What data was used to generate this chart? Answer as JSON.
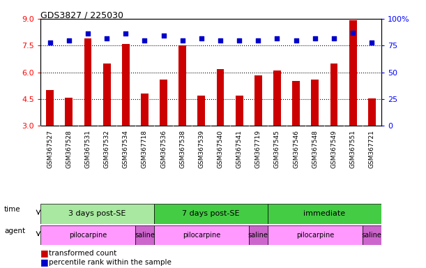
{
  "title": "GDS3827 / 225030",
  "samples": [
    "GSM367527",
    "GSM367528",
    "GSM367531",
    "GSM367532",
    "GSM367534",
    "GSM367718",
    "GSM367536",
    "GSM367538",
    "GSM367539",
    "GSM367540",
    "GSM367541",
    "GSM367719",
    "GSM367545",
    "GSM367546",
    "GSM367548",
    "GSM367549",
    "GSM367551",
    "GSM367721"
  ],
  "transformed_count": [
    5.0,
    4.6,
    7.9,
    6.5,
    7.6,
    4.8,
    5.6,
    7.5,
    4.7,
    6.2,
    4.7,
    5.85,
    6.1,
    5.5,
    5.6,
    6.5,
    8.9,
    4.55
  ],
  "percentile_rank": [
    78,
    80,
    86,
    82,
    86,
    80,
    84,
    80,
    82,
    80,
    80,
    80,
    82,
    80,
    82,
    82,
    87,
    78
  ],
  "bar_color": "#cc0000",
  "dot_color": "#0000cc",
  "ylim_left": [
    3,
    9
  ],
  "ylim_right": [
    0,
    100
  ],
  "yticks_left": [
    3,
    4.5,
    6,
    7.5,
    9
  ],
  "yticks_right": [
    0,
    25,
    50,
    75,
    100
  ],
  "dotted_lines": [
    4.5,
    6.0,
    7.5
  ],
  "time_groups": [
    {
      "label": "3 days post-SE",
      "start": 0,
      "end": 6,
      "color": "#a8e8a0"
    },
    {
      "label": "7 days post-SE",
      "start": 6,
      "end": 12,
      "color": "#44cc44"
    },
    {
      "label": "immediate",
      "start": 12,
      "end": 18,
      "color": "#44cc44"
    }
  ],
  "agent_groups": [
    {
      "label": "pilocarpine",
      "start": 0,
      "end": 5,
      "color": "#ff99ff"
    },
    {
      "label": "saline",
      "start": 5,
      "end": 6,
      "color": "#cc66cc"
    },
    {
      "label": "pilocarpine",
      "start": 6,
      "end": 11,
      "color": "#ff99ff"
    },
    {
      "label": "saline",
      "start": 11,
      "end": 12,
      "color": "#cc66cc"
    },
    {
      "label": "pilocarpine",
      "start": 12,
      "end": 17,
      "color": "#ff99ff"
    },
    {
      "label": "saline",
      "start": 17,
      "end": 18,
      "color": "#cc66cc"
    }
  ],
  "legend_bar_label": "transformed count",
  "legend_dot_label": "percentile rank within the sample",
  "xticklabel_bg": "#dddddd",
  "bar_width": 0.4
}
